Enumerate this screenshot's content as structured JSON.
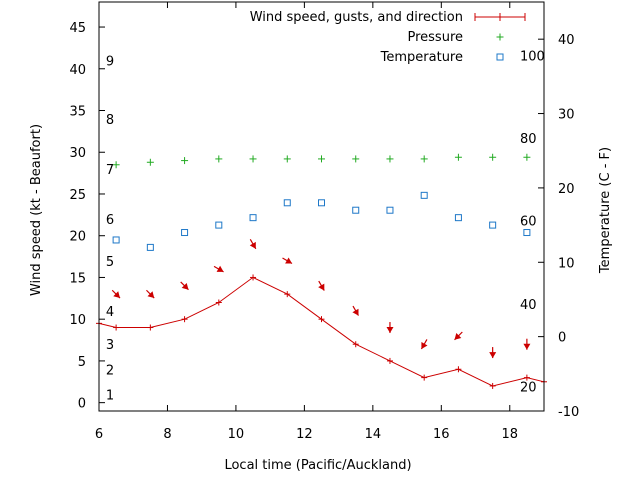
{
  "chart_data": {
    "type": "line",
    "xlabel": "Local time (Pacific/Auckland)",
    "ylabel": "Wind speed (kt - Beaufort)",
    "y2label": "Temperature (C - F)",
    "xlim": [
      6,
      19
    ],
    "ylim": [
      -1,
      48
    ],
    "y2lim": [
      -10,
      45
    ],
    "x_ticks": [
      6,
      8,
      10,
      12,
      14,
      16,
      18
    ],
    "y_ticks": [
      0,
      5,
      10,
      15,
      20,
      25,
      30,
      35,
      40,
      45
    ],
    "y2_ticks": [
      -10,
      0,
      10,
      20,
      30,
      40
    ],
    "beaufort_labels": [
      {
        "text": "1",
        "y": 1
      },
      {
        "text": "2",
        "y": 4
      },
      {
        "text": "3",
        "y": 7
      },
      {
        "text": "4",
        "y": 11
      },
      {
        "text": "5",
        "y": 17
      },
      {
        "text": "6",
        "y": 22
      },
      {
        "text": "7",
        "y": 28
      },
      {
        "text": "8",
        "y": 34
      },
      {
        "text": "9",
        "y": 41
      }
    ],
    "fahrenheit_labels": [
      {
        "text": "20",
        "c": -6.7
      },
      {
        "text": "40",
        "c": 4.4
      },
      {
        "text": "60",
        "c": 15.6
      },
      {
        "text": "80",
        "c": 26.7
      },
      {
        "text": "100",
        "c": 37.8
      }
    ],
    "legend": {
      "position": "top-right",
      "wind": "Wind speed, gusts, and direction",
      "pressure": "Pressure",
      "temperature": "Temperature"
    },
    "colors": {
      "wind": "#cc0000",
      "pressure": "#22aa22",
      "temperature": "#1e78c8"
    },
    "wind": {
      "x": [
        6,
        6.5,
        7.5,
        8.5,
        9.5,
        10.5,
        11.5,
        12.5,
        13.5,
        14.5,
        15.5,
        16.5,
        17.5,
        18.5,
        19
      ],
      "y": [
        9.5,
        9,
        9,
        10,
        12,
        15,
        13,
        10,
        7,
        5,
        3,
        4,
        2,
        3,
        2.5
      ]
    },
    "gust_arrows": {
      "x": [
        6.5,
        7.5,
        8.5,
        9.5,
        10.5,
        11.5,
        12.5,
        13.5,
        14.5,
        15.5,
        16.5,
        17.5,
        18.5
      ],
      "y": [
        13,
        13,
        14,
        16,
        19,
        17,
        14,
        11,
        9,
        7,
        8,
        6,
        7
      ],
      "direction_deg": [
        315,
        315,
        315,
        300,
        330,
        300,
        330,
        330,
        0,
        30,
        45,
        0,
        0
      ]
    },
    "pressure": {
      "x": [
        6.5,
        7.5,
        8.5,
        9.5,
        10.5,
        11.5,
        12.5,
        13.5,
        14.5,
        15.5,
        16.5,
        17.5,
        18.5
      ],
      "y": [
        28.5,
        28.8,
        29,
        29.2,
        29.2,
        29.2,
        29.2,
        29.2,
        29.2,
        29.2,
        29.4,
        29.4,
        29.4
      ]
    },
    "temperature": {
      "x": [
        6.5,
        7.5,
        8.5,
        9.5,
        10.5,
        11.5,
        12.5,
        13.5,
        14.5,
        15.5,
        16.5,
        17.5,
        18.5
      ],
      "y": [
        13,
        12,
        14,
        15,
        16,
        18,
        18,
        17,
        17,
        19,
        16,
        15,
        14
      ]
    }
  }
}
